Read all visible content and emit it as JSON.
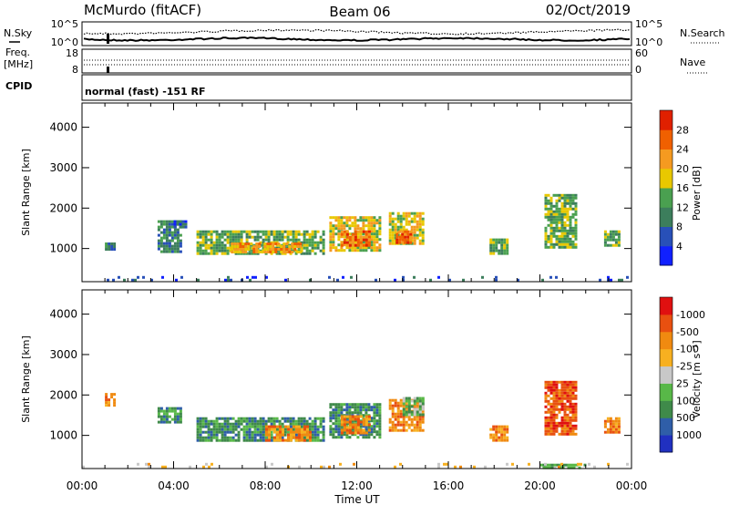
{
  "header": {
    "station": "McMurdo (fitACF)",
    "beam": "Beam 06",
    "date": "02/Oct/2019"
  },
  "noise_panel": {
    "left_label": "N.Sky",
    "right_label": "N.Search",
    "left_ticks": [
      "10^5",
      "10^0"
    ],
    "right_ticks": [
      "10^5",
      "10^0"
    ]
  },
  "freq_panel": {
    "left_label_1": "Freq.",
    "left_label_2": "[MHz]",
    "right_label": "Nave",
    "left_ticks": [
      "18",
      "8"
    ],
    "right_ticks": [
      "60",
      "0"
    ]
  },
  "cpid_panel": {
    "label": "CPID",
    "text": "normal (fast) -151 RF"
  },
  "x_axis": {
    "label": "Time UT",
    "ticks": [
      "00:00",
      "04:00",
      "08:00",
      "12:00",
      "16:00",
      "20:00",
      "00:00"
    ]
  },
  "chart_data": [
    {
      "type": "heatmap",
      "name": "power",
      "ylabel": "Slant Range [km]",
      "yticks": [
        1000,
        2000,
        3000,
        4000
      ],
      "ylim": [
        180,
        4600
      ],
      "xlim_hours": [
        0,
        24
      ],
      "colorbar": {
        "label": "Power [dB]",
        "ticks": [
          "4",
          "8",
          "12",
          "16",
          "20",
          "24",
          "28"
        ],
        "colors": [
          "#1020ff",
          "#2850b8",
          "#3c7e5c",
          "#4aa050",
          "#e8c800",
          "#f59a20",
          "#f06000",
          "#e02000"
        ]
      },
      "echo_regions": [
        {
          "t": [
            1.0,
            1.4
          ],
          "r": [
            950,
            1150
          ],
          "level": 2
        },
        {
          "t": [
            3.3,
            4.3
          ],
          "r": [
            950,
            1700
          ],
          "level": 2
        },
        {
          "t": [
            4.0,
            4.5
          ],
          "r": [
            1500,
            1700
          ],
          "level": 1
        },
        {
          "t": [
            5.0,
            10.6
          ],
          "r": [
            850,
            1450
          ],
          "level": 3
        },
        {
          "t": [
            6.5,
            9.5
          ],
          "r": [
            900,
            1150
          ],
          "level": 5
        },
        {
          "t": [
            10.8,
            13.0
          ],
          "r": [
            950,
            1800
          ],
          "level": 4
        },
        {
          "t": [
            11.3,
            12.6
          ],
          "r": [
            1050,
            1450
          ],
          "level": 6
        },
        {
          "t": [
            13.4,
            14.9
          ],
          "r": [
            1100,
            1900
          ],
          "level": 4
        },
        {
          "t": [
            13.7,
            14.3
          ],
          "r": [
            1150,
            1450
          ],
          "level": 6
        },
        {
          "t": [
            17.8,
            18.6
          ],
          "r": [
            850,
            1250
          ],
          "level": 3
        },
        {
          "t": [
            20.2,
            21.6
          ],
          "r": [
            1050,
            2350
          ],
          "level": 3
        },
        {
          "t": [
            22.8,
            23.5
          ],
          "r": [
            1050,
            1450
          ],
          "level": 3
        },
        {
          "t": [
            0.0,
            24.0
          ],
          "r": [
            200,
            320
          ],
          "level": 1,
          "sparse": true
        }
      ]
    },
    {
      "type": "heatmap",
      "name": "velocity",
      "ylabel": "Slant Range [km]",
      "yticks": [
        1000,
        2000,
        3000,
        4000
      ],
      "ylim": [
        180,
        4600
      ],
      "xlim_hours": [
        0,
        24
      ],
      "colorbar": {
        "label": "Velocity [m s⁻¹]",
        "ticks": [
          "1000",
          "500",
          "100",
          "25",
          "-25",
          "-100",
          "-500",
          "-1000"
        ],
        "colors": [
          "#2030c0",
          "#2f5ea8",
          "#3f8a4a",
          "#58b848",
          "#c8c8c8",
          "#f7b020",
          "#f08a10",
          "#e85010",
          "#e01010"
        ]
      },
      "echo_regions": [
        {
          "t": [
            1.0,
            1.4
          ],
          "r": [
            1750,
            2050
          ],
          "level": 6
        },
        {
          "t": [
            3.3,
            4.3
          ],
          "r": [
            1300,
            1700
          ],
          "level": 2
        },
        {
          "t": [
            5.0,
            10.6
          ],
          "r": [
            850,
            1450
          ],
          "level": 2
        },
        {
          "t": [
            8.0,
            10.0
          ],
          "r": [
            900,
            1250
          ],
          "level": 6
        },
        {
          "t": [
            10.8,
            13.0
          ],
          "r": [
            950,
            1800
          ],
          "level": 2
        },
        {
          "t": [
            11.3,
            12.6
          ],
          "r": [
            1050,
            1500
          ],
          "level": 6
        },
        {
          "t": [
            13.4,
            14.9
          ],
          "r": [
            1100,
            1900
          ],
          "level": 6
        },
        {
          "t": [
            14.0,
            14.9
          ],
          "r": [
            1500,
            1950
          ],
          "level": 3
        },
        {
          "t": [
            17.8,
            18.6
          ],
          "r": [
            850,
            1250
          ],
          "level": 6
        },
        {
          "t": [
            20.2,
            21.6
          ],
          "r": [
            1050,
            2350
          ],
          "level": 7
        },
        {
          "t": [
            22.8,
            23.5
          ],
          "r": [
            1050,
            1450
          ],
          "level": 6
        },
        {
          "t": [
            20.0,
            22.0
          ],
          "r": [
            200,
            300
          ],
          "level": 3
        },
        {
          "t": [
            0.0,
            24.0
          ],
          "r": [
            200,
            320
          ],
          "level": 5,
          "sparse": true
        }
      ]
    }
  ]
}
